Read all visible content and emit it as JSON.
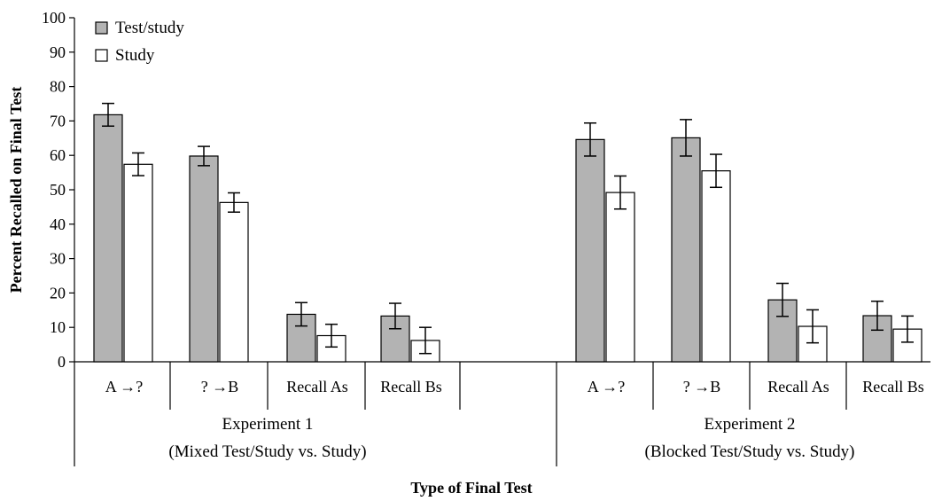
{
  "chart_data": {
    "type": "bar",
    "ylabel": "Percent Recalled on Final Test",
    "xlabel": "Type of Final Test",
    "ylim": [
      0,
      100
    ],
    "yticks": [
      "0",
      "10",
      "20",
      "30",
      "40",
      "50",
      "60",
      "70",
      "80",
      "90",
      "100"
    ],
    "grid": false,
    "legend_position": "top-left",
    "legend": [
      {
        "name": "Test/study",
        "color": "#b3b3b3"
      },
      {
        "name": "Study",
        "color": "#ffffff"
      }
    ],
    "groups": [
      {
        "label_line1": "Experiment 1",
        "label_line2": "(Mixed Test/Study vs. Study)",
        "categories": [
          "A →?",
          "? →B",
          "Recall As",
          "Recall Bs"
        ],
        "series": [
          {
            "name": "Test/study",
            "values": [
              71.8,
              59.8,
              13.8,
              13.3
            ],
            "errors": [
              3.3,
              2.8,
              3.4,
              3.7
            ]
          },
          {
            "name": "Study",
            "values": [
              57.4,
              46.3,
              7.6,
              6.2
            ],
            "errors": [
              3.3,
              2.8,
              3.3,
              3.8
            ]
          }
        ]
      },
      {
        "label_line1": "Experiment 2",
        "label_line2": "(Blocked Test/Study vs. Study)",
        "categories": [
          "A →?",
          "? →B",
          "Recall As",
          "Recall Bs"
        ],
        "series": [
          {
            "name": "Test/study",
            "values": [
              64.6,
              65.1,
              18.0,
              13.4
            ],
            "errors": [
              4.8,
              5.3,
              4.8,
              4.2
            ]
          },
          {
            "name": "Study",
            "values": [
              49.2,
              55.5,
              10.3,
              9.5
            ],
            "errors": [
              4.8,
              4.8,
              4.8,
              3.8
            ]
          }
        ]
      }
    ]
  }
}
